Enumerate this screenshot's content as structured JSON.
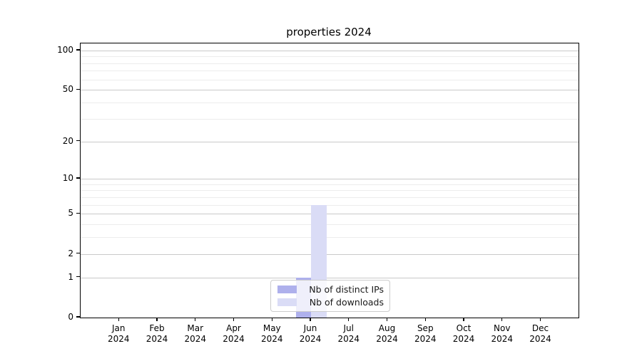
{
  "title": "properties 2024",
  "colors": {
    "distinct_ips": "#aeb0ec",
    "downloads": "#dadcf6",
    "grid_major": "#c9c9c9",
    "grid_minor": "#ececec",
    "axis": "#000000",
    "legend_border": "#cccccc"
  },
  "chart_data": {
    "type": "bar",
    "title": "properties 2024",
    "categories": [
      {
        "month": "Jan",
        "year": "2024"
      },
      {
        "month": "Feb",
        "year": "2024"
      },
      {
        "month": "Mar",
        "year": "2024"
      },
      {
        "month": "Apr",
        "year": "2024"
      },
      {
        "month": "May",
        "year": "2024"
      },
      {
        "month": "Jun",
        "year": "2024"
      },
      {
        "month": "Jul",
        "year": "2024"
      },
      {
        "month": "Aug",
        "year": "2024"
      },
      {
        "month": "Sep",
        "year": "2024"
      },
      {
        "month": "Oct",
        "year": "2024"
      },
      {
        "month": "Nov",
        "year": "2024"
      },
      {
        "month": "Dec",
        "year": "2024"
      }
    ],
    "series": [
      {
        "name": "Nb of distinct IPs",
        "color": "#aeb0ec",
        "values": [
          0,
          0,
          0,
          0,
          0,
          1,
          0,
          0,
          0,
          0,
          0,
          0
        ]
      },
      {
        "name": "Nb of downloads",
        "color": "#dadcf6",
        "values": [
          0,
          0,
          0,
          0,
          0,
          6,
          0,
          0,
          0,
          0,
          0,
          0
        ]
      }
    ],
    "xlabel": "",
    "ylabel": "",
    "y_scale": "log1p",
    "y_major_ticks": [
      0,
      1,
      2,
      5,
      10,
      20,
      50,
      100
    ],
    "y_minor_gridlines": [
      3,
      4,
      6,
      7,
      8,
      9,
      30,
      40,
      60,
      70,
      80,
      90
    ],
    "ylim": [
      0,
      113
    ],
    "grid": true,
    "legend_position": "lower center"
  }
}
